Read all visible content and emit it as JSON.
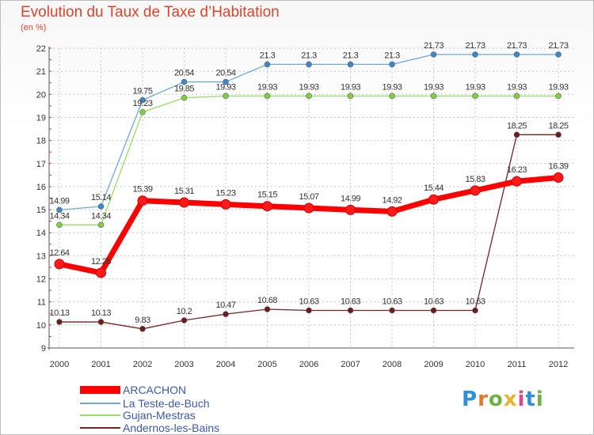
{
  "header": {
    "title": "Evolution du Taux de Taxe d’Habitation",
    "unit": "(en %)"
  },
  "brand": {
    "logo": [
      "P",
      "r",
      "o",
      "x",
      "i",
      "t",
      "i"
    ],
    "logo_colors": [
      "#2f8fd8",
      "#e8762a",
      "#6db33f",
      "#e8b52a",
      "#d94a8a",
      "#2f8fd8",
      "#6db33f"
    ]
  },
  "chart_data": {
    "type": "line",
    "title": "Evolution du Taux de Taxe d’Habitation",
    "ylabel": "(en %)",
    "ylim": [
      9,
      22
    ],
    "grid": true,
    "legend": "bottom-left",
    "x": [
      "2000",
      "2001",
      "2002",
      "2003",
      "2004",
      "2005",
      "2006",
      "2007",
      "2008",
      "2009",
      "2010",
      "2011",
      "2012"
    ],
    "yticks": [
      "9",
      "10",
      "11",
      "12",
      "13",
      "14",
      "15",
      "16",
      "17",
      "18",
      "19",
      "20",
      "21",
      "22"
    ],
    "series": [
      {
        "name": "ARCACHON",
        "color": "#ff0000",
        "values": [
          12.64,
          12.26,
          15.39,
          15.31,
          15.23,
          15.15,
          15.07,
          14.99,
          14.92,
          15.44,
          15.83,
          16.23,
          16.39
        ]
      },
      {
        "name": "La Teste-de-Buch",
        "color": "#6fa8dc",
        "values": [
          14.99,
          15.14,
          19.75,
          20.54,
          20.54,
          21.3,
          21.3,
          21.3,
          21.3,
          21.73,
          21.73,
          21.73,
          21.73
        ]
      },
      {
        "name": "Gujan-Mestras",
        "color": "#99dd66",
        "values": [
          14.34,
          14.34,
          19.23,
          19.85,
          19.93,
          19.93,
          19.93,
          19.93,
          19.93,
          19.93,
          19.93,
          19.93,
          19.93
        ]
      },
      {
        "name": "Andernos-les-Bains",
        "color": "#7a2222",
        "values": [
          10.13,
          10.13,
          9.83,
          10.2,
          10.47,
          10.68,
          10.63,
          10.63,
          10.63,
          10.63,
          10.63,
          18.25,
          18.25
        ]
      }
    ],
    "data_labels": [
      [
        "12.64",
        "12.26",
        "15.39",
        "15.31",
        "15.23",
        "15.15",
        "15.07",
        "14.99",
        "14.92",
        "15.44",
        "15.83",
        "16.23",
        "16.39"
      ],
      [
        "14.99",
        "15.14",
        "19.75",
        "20.54",
        "20.54",
        "21.3",
        "21.3",
        "21.3",
        "21.3",
        "21.73",
        "21.73",
        "21.73",
        "21.73"
      ],
      [
        "14.34",
        "14.34",
        "19.23",
        "19.85",
        "19.93",
        "19.93",
        "19.93",
        "19.93",
        "19.93",
        "19.93",
        "19.93",
        "19.93",
        "19.93"
      ],
      [
        "10.13",
        "10.13",
        "9.83",
        "10.2",
        "10.47",
        "10.68",
        "10.63",
        "10.63",
        "10.63",
        "10.63",
        "10.63",
        "18.25",
        "18.25"
      ]
    ]
  }
}
